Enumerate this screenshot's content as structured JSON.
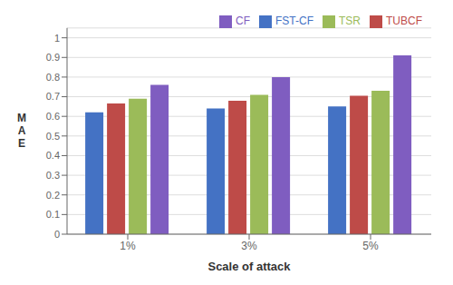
{
  "chart_data": {
    "type": "bar",
    "categories": [
      "1%",
      "3%",
      "5%"
    ],
    "series": [
      {
        "name": "FST-CF",
        "color": "#4472C4",
        "values": [
          0.62,
          0.64,
          0.65
        ]
      },
      {
        "name": "TUBCF",
        "color": "#BE4B48",
        "values": [
          0.665,
          0.68,
          0.705
        ]
      },
      {
        "name": "TSR",
        "color": "#9BBB59",
        "values": [
          0.69,
          0.71,
          0.73
        ]
      },
      {
        "name": "CF",
        "color": "#7F5DC0",
        "values": [
          0.76,
          0.8,
          0.91
        ]
      }
    ],
    "xlabel": "Scale of attack",
    "ylabel": "M\nA\nE",
    "ylim": [
      0,
      1.05
    ],
    "yticks": [
      0,
      0.1,
      0.2,
      0.3,
      0.4,
      0.5,
      0.6,
      0.7,
      0.8,
      0.9,
      1
    ],
    "grid": true,
    "legend": "upper right"
  }
}
